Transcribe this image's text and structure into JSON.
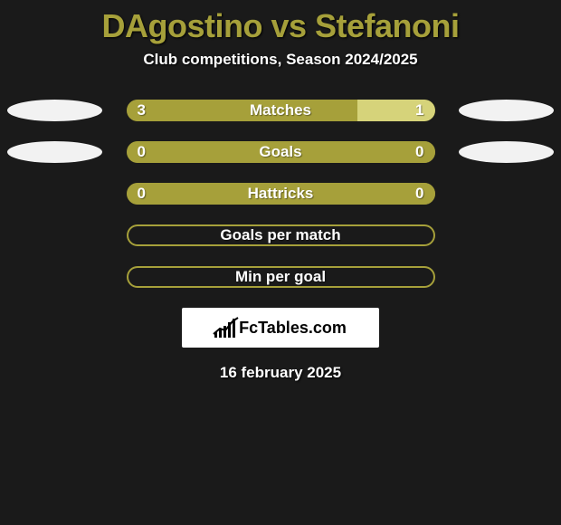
{
  "colors": {
    "background": "#1a1a1a",
    "title": "#a6a03a",
    "text_white": "#ffffff",
    "ellipse": "#f2f2f2",
    "bar_left": "#a6a03a",
    "bar_right": "#d6d37a",
    "bar_empty": "#a6a03a",
    "bar_outline": "#a6a03a",
    "brand_bg": "#ffffff"
  },
  "typography": {
    "title_size": 36,
    "subtitle_size": 17,
    "bar_label_size": 17,
    "bar_value_size": 17,
    "date_size": 17
  },
  "title": "DAgostino vs Stefanoni",
  "subtitle": "Club competitions, Season 2024/2025",
  "date": "16 february 2025",
  "brand": "FcTables.com",
  "rows": [
    {
      "label": "Matches",
      "left_value": "3",
      "right_value": "1",
      "left_pct": 75,
      "right_pct": 25,
      "show_ellipses": true,
      "show_values": true,
      "filled": true
    },
    {
      "label": "Goals",
      "left_value": "0",
      "right_value": "0",
      "left_pct": 100,
      "right_pct": 0,
      "show_ellipses": true,
      "show_values": true,
      "filled": true
    },
    {
      "label": "Hattricks",
      "left_value": "0",
      "right_value": "0",
      "left_pct": 100,
      "right_pct": 0,
      "show_ellipses": false,
      "show_values": true,
      "filled": true
    },
    {
      "label": "Goals per match",
      "left_value": "",
      "right_value": "",
      "left_pct": 0,
      "right_pct": 0,
      "show_ellipses": false,
      "show_values": false,
      "filled": false
    },
    {
      "label": "Min per goal",
      "left_value": "",
      "right_value": "",
      "left_pct": 0,
      "right_pct": 0,
      "show_ellipses": false,
      "show_values": false,
      "filled": false
    }
  ]
}
